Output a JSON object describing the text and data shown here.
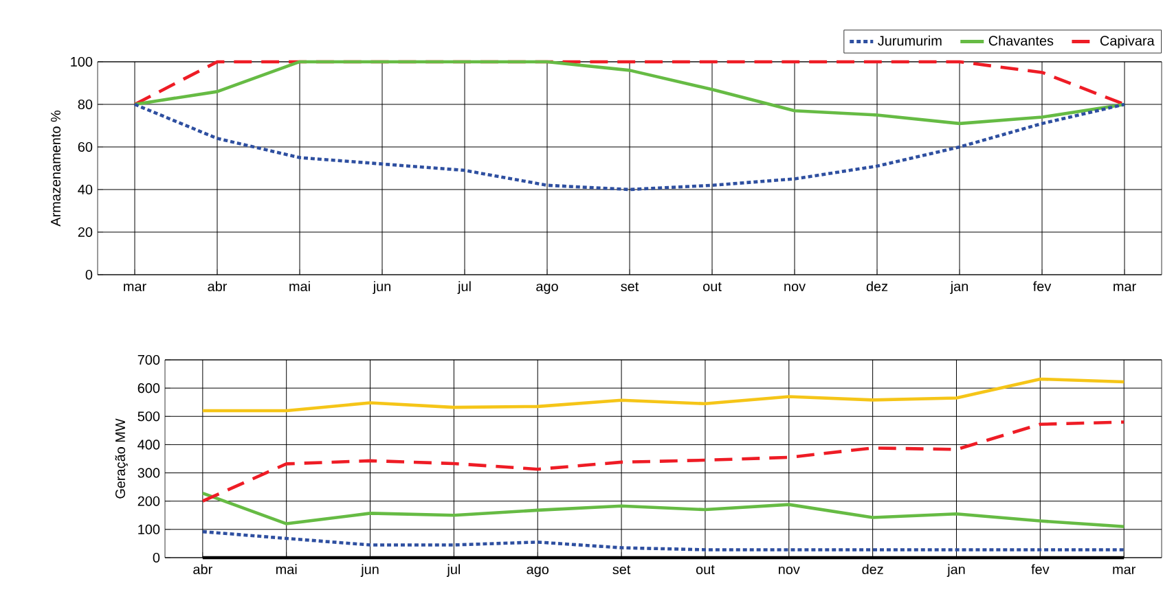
{
  "chart_data": [
    {
      "type": "line",
      "ylabel": "Armazenamento %",
      "categories": [
        "mar",
        "abr",
        "mai",
        "jun",
        "jul",
        "ago",
        "set",
        "out",
        "nov",
        "dez",
        "jan",
        "fev",
        "mar"
      ],
      "ylim": [
        0,
        100
      ],
      "yticks": [
        0,
        20,
        40,
        60,
        80,
        100
      ],
      "grid": true,
      "legend": "top right",
      "marker": "none",
      "series": [
        {
          "name": "Jurumurim",
          "color": "#2e4fa0",
          "line_style": "dotted",
          "values": [
            80,
            64,
            55,
            52,
            49,
            42,
            40,
            42,
            45,
            51,
            60,
            71,
            80
          ]
        },
        {
          "name": "Chavantes",
          "color": "#66bb44",
          "line_style": "solid",
          "values": [
            80,
            86,
            100,
            100,
            100,
            100,
            96,
            87,
            77,
            75,
            71,
            74,
            80
          ]
        },
        {
          "name": "Capivara",
          "color": "#ee1c25",
          "line_style": "dashed",
          "values": [
            80,
            100,
            100,
            100,
            100,
            100,
            100,
            100,
            100,
            100,
            100,
            95,
            80
          ]
        }
      ]
    },
    {
      "type": "line",
      "ylabel": "Geração MW",
      "categories": [
        "abr",
        "mai",
        "jun",
        "jul",
        "ago",
        "set",
        "out",
        "nov",
        "dez",
        "jan",
        "fev",
        "mar"
      ],
      "ylim": [
        0,
        700
      ],
      "yticks": [
        0,
        100,
        200,
        300,
        400,
        500,
        600,
        700
      ],
      "grid": true,
      "marker": "none",
      "series": [
        {
          "color": "#f5c518",
          "line_style": "solid",
          "values": [
            520,
            520,
            548,
            532,
            535,
            557,
            545,
            570,
            558,
            565,
            632,
            622
          ]
        },
        {
          "color": "#ee1c25",
          "line_style": "dashed",
          "values": [
            200,
            332,
            343,
            333,
            313,
            338,
            345,
            355,
            388,
            383,
            472,
            480
          ]
        },
        {
          "color": "#66bb44",
          "line_style": "solid",
          "values": [
            228,
            120,
            157,
            150,
            168,
            183,
            170,
            188,
            142,
            155,
            130,
            110
          ]
        },
        {
          "color": "#2e4fa0",
          "line_style": "dotted",
          "values": [
            92,
            68,
            45,
            45,
            55,
            35,
            28,
            28,
            28,
            28,
            28,
            28
          ]
        },
        {
          "color": "#000000",
          "line_style": "solid",
          "values": [
            0,
            0,
            0,
            0,
            0,
            0,
            0,
            0,
            0,
            0,
            0,
            0
          ]
        }
      ]
    }
  ]
}
